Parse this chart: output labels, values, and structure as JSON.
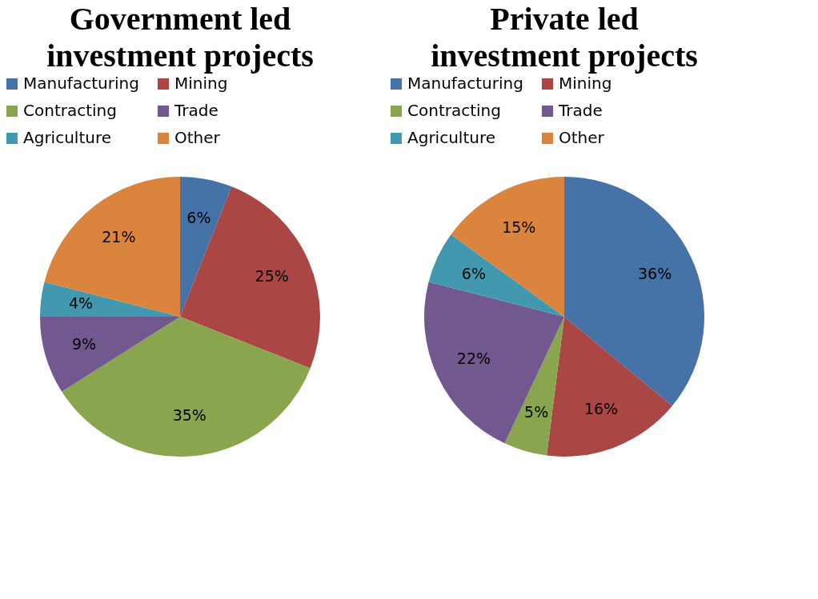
{
  "chart_data": [
    {
      "type": "pie",
      "title": "Government led investment projects",
      "categories": [
        "Manufacturing",
        "Mining",
        "Contracting",
        "Trade",
        "Agriculture",
        "Other"
      ],
      "values": [
        6,
        25,
        35,
        9,
        4,
        21
      ],
      "value_labels": [
        "6%",
        "25%",
        "35%",
        "9%",
        "4%",
        "21%"
      ],
      "colors": [
        "#4572a7",
        "#aa4643",
        "#89a54e",
        "#71588f",
        "#4198af",
        "#db843d"
      ],
      "legend": "top"
    },
    {
      "type": "pie",
      "title": "Private led investment projects",
      "categories": [
        "Manufacturing",
        "Mining",
        "Contracting",
        "Trade",
        "Agriculture",
        "Other"
      ],
      "values": [
        36,
        16,
        5,
        22,
        6,
        15
      ],
      "value_labels": [
        "36%",
        "16%",
        "5%",
        "22%",
        "6%",
        "15%"
      ],
      "colors": [
        "#4572a7",
        "#aa4643",
        "#89a54e",
        "#71588f",
        "#4198af",
        "#db843d"
      ],
      "legend": "top"
    }
  ]
}
